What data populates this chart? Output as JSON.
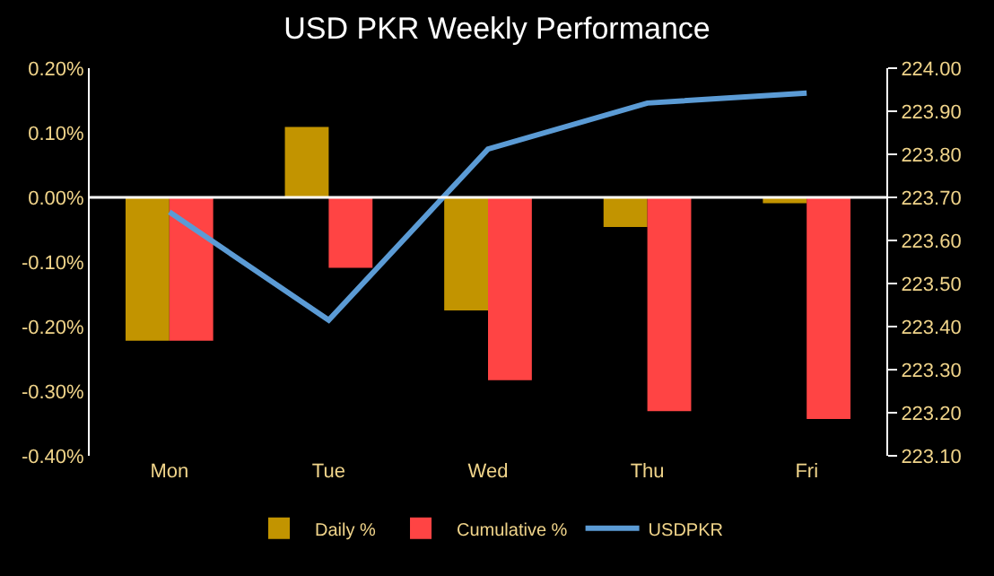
{
  "chart_data": {
    "type": "bar",
    "title": "USD PKR Weekly Performance",
    "categories": [
      "Mon",
      "Tue",
      "Wed",
      "Thu",
      "Fri"
    ],
    "series": [
      {
        "name": "Daily %",
        "color": "#c29400",
        "values": [
          -0.222,
          0.109,
          -0.175,
          -0.046,
          -0.009
        ]
      },
      {
        "name": "Cumulative %",
        "color": "#ff4444",
        "values": [
          -0.222,
          -0.109,
          -0.283,
          -0.331,
          -0.343
        ]
      },
      {
        "name": "USDPKR",
        "color": "#5b9bd5",
        "type": "line",
        "axis": "y2",
        "values": [
          223.666,
          223.415,
          223.812,
          223.919,
          223.942
        ]
      }
    ],
    "ylim": [
      -0.4,
      0.2
    ],
    "yticks": [
      {
        "value": -0.4,
        "label": "-0.40%"
      },
      {
        "value": -0.3,
        "label": "-0.30%"
      },
      {
        "value": -0.2,
        "label": "-0.20%"
      },
      {
        "value": -0.1,
        "label": "-0.10%"
      },
      {
        "value": 0,
        "label": "0.00%"
      },
      {
        "value": 0.1,
        "label": "0.10%"
      },
      {
        "value": 0.2,
        "label": "0.20%"
      }
    ],
    "y2lim": [
      223.1,
      224.0
    ],
    "y2ticks": [
      {
        "value": 223.1,
        "label": "223.10"
      },
      {
        "value": 223.2,
        "label": "223.20"
      },
      {
        "value": 223.3,
        "label": "223.30"
      },
      {
        "value": 223.4,
        "label": "223.40"
      },
      {
        "value": 223.5,
        "label": "223.50"
      },
      {
        "value": 223.6,
        "label": "223.60"
      },
      {
        "value": 223.7,
        "label": "223.70"
      },
      {
        "value": 223.8,
        "label": "223.80"
      },
      {
        "value": 223.9,
        "label": "223.90"
      },
      {
        "value": 224.0,
        "label": "224.00"
      }
    ],
    "ref_lines": [
      {
        "axis": "y",
        "value": 0,
        "color": "#ffffff"
      }
    ],
    "legend": "bottom",
    "marker": "none"
  }
}
